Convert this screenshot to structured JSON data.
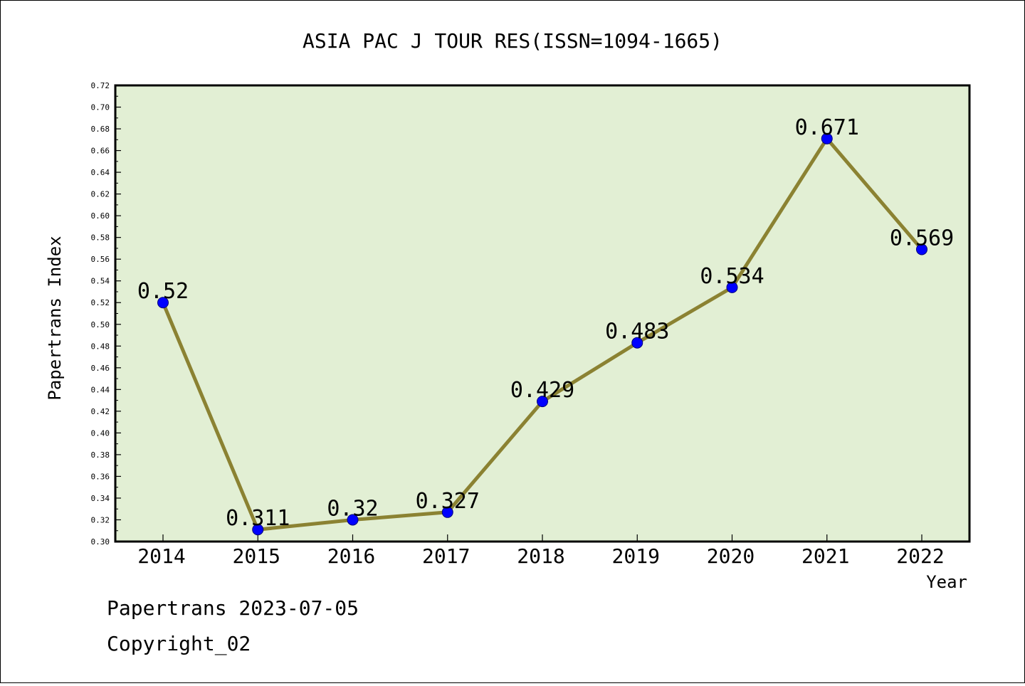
{
  "chart_data": {
    "type": "line",
    "title": "ASIA PAC J TOUR RES(ISSN=1094-1665)",
    "xlabel": "Year",
    "ylabel": "Papertrans Index",
    "categories": [
      "2014",
      "2015",
      "2016",
      "2017",
      "2018",
      "2019",
      "2020",
      "2021",
      "2022"
    ],
    "series": [
      {
        "values": [
          0.52,
          0.311,
          0.32,
          0.327,
          0.429,
          0.483,
          0.534,
          0.671,
          0.569
        ],
        "labels": [
          "0.52",
          "0.311",
          "0.32",
          "0.327",
          "0.429",
          "0.483",
          "0.534",
          "0.671",
          "0.569"
        ]
      }
    ],
    "ylim": [
      0.3,
      0.72
    ],
    "ytick_step": 0.02,
    "grid": false,
    "colors": {
      "plot_background": "#e2efd4",
      "line": "#8b8232",
      "marker": "#0000ff"
    }
  },
  "footer": {
    "line1": "Papertrans 2023-07-05",
    "line2": "Copyright_02"
  }
}
